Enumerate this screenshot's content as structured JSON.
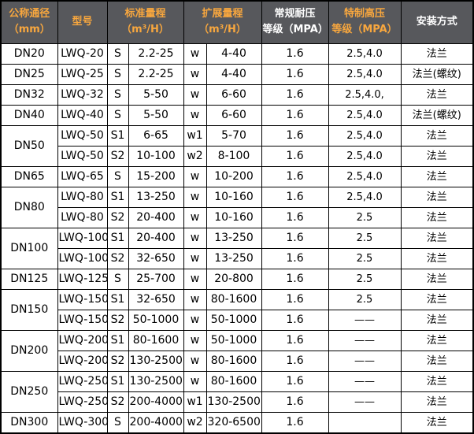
{
  "colors": {
    "header_bg": "#57585c",
    "header_orange": "#f8a73e",
    "header_white": "#ffffff",
    "border": "#000000",
    "cell_bg": "#ffffff",
    "text": "#000000"
  },
  "table": {
    "headers": [
      {
        "label": "公称通径\n（mm）",
        "accent": true
      },
      {
        "label": "型号",
        "accent": true
      },
      {
        "label": "标准量程\n（m³/H）",
        "accent": true
      },
      {
        "label": "扩展量程\n（m³/H）",
        "accent": true
      },
      {
        "label": "常规耐压\n等级（MPA）",
        "accent": false
      },
      {
        "label": "特制高压\n等级（MPA）",
        "accent": true
      },
      {
        "label": "安装方式",
        "accent": false
      }
    ],
    "rows": [
      {
        "dn": "DN20",
        "span": 1,
        "model": "LWQ-20",
        "s": "S",
        "s_range": "2.2-25",
        "w": "w",
        "w_range": "4-40",
        "mpa": "1.6",
        "high": "2.5,4.0",
        "install": "法兰"
      },
      {
        "dn": "DN25",
        "span": 1,
        "model": "LWQ-25",
        "s": "S",
        "s_range": "2.2-25",
        "w": "w",
        "w_range": "4-40",
        "mpa": "1.6",
        "high": "2.5,4.0",
        "install": "法兰(螺纹)"
      },
      {
        "dn": "DN32",
        "span": 1,
        "model": "LWQ-32",
        "s": "S",
        "s_range": "5-50",
        "w": "w",
        "w_range": "6-60",
        "mpa": "1.6",
        "high": "2.5,4.0,",
        "install": "法兰"
      },
      {
        "dn": "DN40",
        "span": 1,
        "model": "LWQ-40",
        "s": "S",
        "s_range": "5-50",
        "w": "w",
        "w_range": "6-60",
        "mpa": "1.6",
        "high": "2.5,4.0",
        "install": "法兰(螺纹)"
      },
      {
        "dn": "DN50",
        "span": 2,
        "model": "LWQ-50",
        "s": "S1",
        "s_range": "6-65",
        "w": "w1",
        "w_range": "5-70",
        "mpa": "1.6",
        "high": "2.5,4.0",
        "install": "法兰"
      },
      {
        "dn": null,
        "span": 0,
        "model": "LWQ-50",
        "s": "S2",
        "s_range": "10-100",
        "w": "w2",
        "w_range": "8-100",
        "mpa": "1.6",
        "high": "2.5,4.0",
        "install": "法兰"
      },
      {
        "dn": "DN65",
        "span": 1,
        "model": "LWQ-65",
        "s": "S",
        "s_range": "15-200",
        "w": "w",
        "w_range": "10-200",
        "mpa": "1.6",
        "high": "2.5,4.0",
        "install": "法兰"
      },
      {
        "dn": "DN80",
        "span": 2,
        "model": "LWQ-80",
        "s": "S1",
        "s_range": "13-250",
        "w": "w",
        "w_range": "10-160",
        "mpa": "1.6",
        "high": "2.5,4.0",
        "install": "法兰"
      },
      {
        "dn": null,
        "span": 0,
        "model": "LWQ-80",
        "s": "S2",
        "s_range": "20-400",
        "w": "w",
        "w_range": "10-160",
        "mpa": "1.6",
        "high": "2.5",
        "install": "法兰"
      },
      {
        "dn": "DN100",
        "span": 2,
        "model": "LWQ-100",
        "s": "S1",
        "s_range": "20-400",
        "w": "w",
        "w_range": "13-250",
        "mpa": "1.6",
        "high": "2.5",
        "install": "法兰"
      },
      {
        "dn": null,
        "span": 0,
        "model": "LWQ-100",
        "s": "S2",
        "s_range": "32-650",
        "w": "w",
        "w_range": "13-250",
        "mpa": "1.6",
        "high": "2.5",
        "install": "法兰"
      },
      {
        "dn": "DN125",
        "span": 1,
        "model": "LWQ-125",
        "s": "S",
        "s_range": "25-700",
        "w": "w",
        "w_range": "20-800",
        "mpa": "1.6",
        "high": "2.5",
        "install": "法兰"
      },
      {
        "dn": "DN150",
        "span": 2,
        "model": "LWQ-150",
        "s": "S1",
        "s_range": "32-650",
        "w": "w",
        "w_range": "80-1600",
        "mpa": "1.6",
        "high": "2.5",
        "install": "法兰"
      },
      {
        "dn": null,
        "span": 0,
        "model": "LWQ-150",
        "s": "S2",
        "s_range": "50-1000",
        "w": "w",
        "w_range": "50-1000",
        "mpa": "1.6",
        "high": "——",
        "install": "法兰"
      },
      {
        "dn": "DN200",
        "span": 2,
        "model": "LWQ-200",
        "s": "S1",
        "s_range": "80-1600",
        "w": "w",
        "w_range": "50-1000",
        "mpa": "1.6",
        "high": "——",
        "install": "法兰"
      },
      {
        "dn": null,
        "span": 0,
        "model": "LWQ-200",
        "s": "S2",
        "s_range": "130-2500",
        "w": "w",
        "w_range": "80-1600",
        "mpa": "1.6",
        "high": "——",
        "install": "法兰"
      },
      {
        "dn": "DN250",
        "span": 2,
        "model": "LWQ-250",
        "s": "S1",
        "s_range": "130-2500",
        "w": "w",
        "w_range": "80-1600",
        "mpa": "1.6",
        "high": "——",
        "install": "法兰"
      },
      {
        "dn": null,
        "span": 0,
        "model": "LWQ-250",
        "s": "S2",
        "s_range": "200-4000",
        "w": "w1",
        "w_range": "130-2500",
        "mpa": "1.6",
        "high": "——",
        "install": "法兰"
      },
      {
        "dn": "DN300",
        "span": 1,
        "model": "LWQ-300",
        "s": "S",
        "s_range": "200-4000",
        "w": "w2",
        "w_range": "320-6500",
        "mpa": "1.6",
        "high": "",
        "install": "法兰"
      }
    ]
  }
}
